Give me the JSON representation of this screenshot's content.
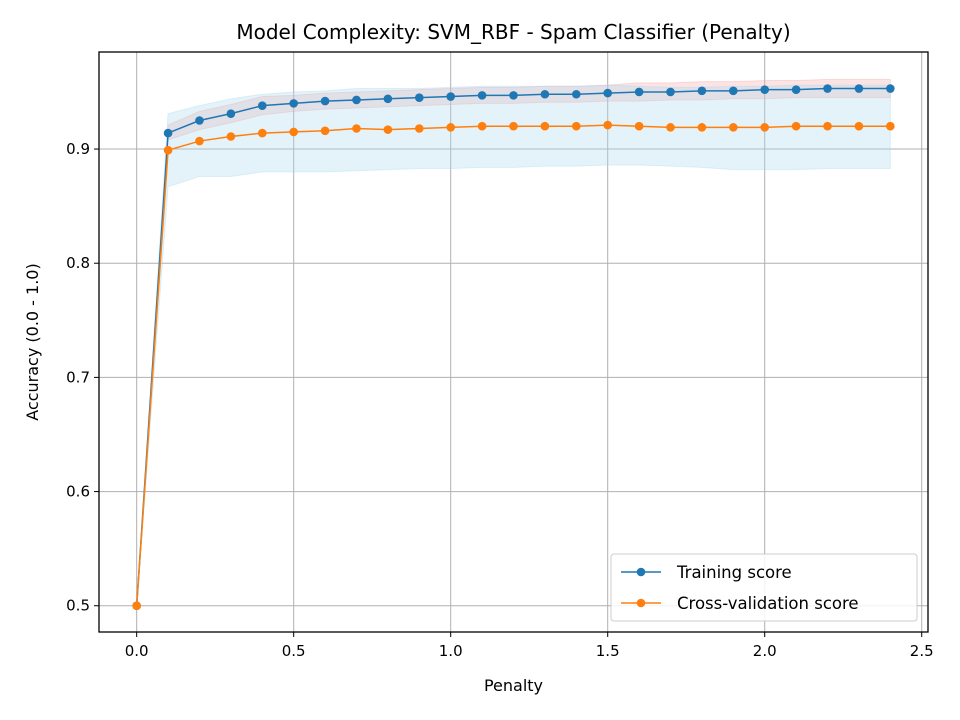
{
  "chart_data": {
    "type": "line",
    "title": "Model Complexity: SVM_RBF - Spam Classifier (Penalty)",
    "xlabel": "Penalty",
    "ylabel": "Accuracy (0.0 - 1.0)",
    "xlim": [
      -0.12,
      2.52
    ],
    "ylim": [
      0.477,
      0.985
    ],
    "xticks": [
      0.0,
      0.5,
      1.0,
      1.5,
      2.0,
      2.5
    ],
    "xtick_labels": [
      "0.0",
      "0.5",
      "1.0",
      "1.5",
      "2.0",
      "2.5"
    ],
    "yticks": [
      0.5,
      0.6,
      0.7,
      0.8,
      0.9
    ],
    "ytick_labels": [
      "0.5",
      "0.6",
      "0.7",
      "0.8",
      "0.9"
    ],
    "grid": true,
    "legend_position": "lower-right",
    "x": [
      0.0,
      0.1,
      0.2,
      0.3,
      0.4,
      0.5,
      0.6,
      0.7,
      0.8,
      0.9,
      1.0,
      1.1,
      1.2,
      1.3,
      1.4,
      1.5,
      1.6,
      1.7,
      1.8,
      1.9,
      2.0,
      2.1,
      2.2,
      2.3,
      2.4
    ],
    "series": [
      {
        "name": "Training score",
        "color": "#1f77b4",
        "band_color": "#f4a6a6",
        "values": [
          0.5,
          0.914,
          0.925,
          0.931,
          0.938,
          0.94,
          0.942,
          0.943,
          0.944,
          0.945,
          0.946,
          0.947,
          0.947,
          0.948,
          0.948,
          0.949,
          0.95,
          0.95,
          0.951,
          0.951,
          0.952,
          0.952,
          0.953,
          0.953,
          0.953
        ],
        "band_lower": [
          0.5,
          0.908,
          0.917,
          0.923,
          0.93,
          0.933,
          0.935,
          0.936,
          0.937,
          0.938,
          0.939,
          0.94,
          0.94,
          0.941,
          0.941,
          0.942,
          0.942,
          0.943,
          0.943,
          0.944,
          0.944,
          0.945,
          0.945,
          0.945,
          0.945
        ],
        "band_upper": [
          0.5,
          0.921,
          0.933,
          0.939,
          0.946,
          0.947,
          0.949,
          0.95,
          0.951,
          0.952,
          0.953,
          0.954,
          0.954,
          0.955,
          0.955,
          0.956,
          0.958,
          0.958,
          0.959,
          0.959,
          0.96,
          0.96,
          0.961,
          0.961,
          0.961
        ]
      },
      {
        "name": "Cross-validation score",
        "color": "#ff7f0e",
        "band_color": "#a6d8f0",
        "values": [
          0.5,
          0.899,
          0.907,
          0.911,
          0.914,
          0.915,
          0.916,
          0.918,
          0.917,
          0.918,
          0.919,
          0.92,
          0.92,
          0.92,
          0.92,
          0.921,
          0.92,
          0.919,
          0.919,
          0.919,
          0.919,
          0.92,
          0.92,
          0.92,
          0.92
        ],
        "band_lower": [
          0.5,
          0.867,
          0.876,
          0.876,
          0.88,
          0.88,
          0.88,
          0.881,
          0.882,
          0.883,
          0.883,
          0.884,
          0.884,
          0.885,
          0.885,
          0.886,
          0.886,
          0.885,
          0.884,
          0.882,
          0.882,
          0.882,
          0.883,
          0.883,
          0.883
        ],
        "band_upper": [
          0.5,
          0.931,
          0.938,
          0.944,
          0.948,
          0.95,
          0.951,
          0.953,
          0.953,
          0.953,
          0.954,
          0.955,
          0.955,
          0.955,
          0.955,
          0.956,
          0.955,
          0.954,
          0.954,
          0.955,
          0.955,
          0.956,
          0.956,
          0.956,
          0.956
        ]
      }
    ]
  }
}
